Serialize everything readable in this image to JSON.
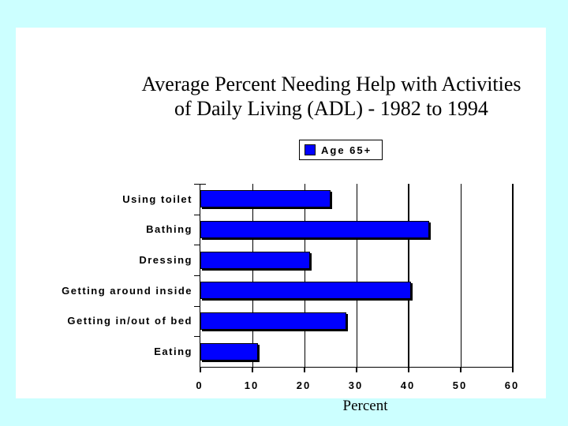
{
  "slide": {
    "background_color": "#ccffff",
    "panel_color": "#ffffff"
  },
  "title": {
    "line1": "Average Percent Needing Help with Activities",
    "line2": "of Daily Living (ADL) - 1982 to 1994"
  },
  "legend": {
    "label": "Age 65+",
    "swatch_color": "#0000ff"
  },
  "chart_data": {
    "type": "bar",
    "orientation": "horizontal",
    "title": "Average Percent Needing Help with Activities of Daily Living (ADL) - 1982 to 1994",
    "categories": [
      "Using toilet",
      "Bathing",
      "Dressing",
      "Getting around inside",
      "Getting in/out of bed",
      "Eating"
    ],
    "series": [
      {
        "name": "Age 65+",
        "values": [
          25,
          44,
          21,
          40.5,
          28,
          11
        ]
      }
    ],
    "xlabel": "Percent",
    "xlim": [
      0,
      60
    ],
    "xticks": [
      0,
      10,
      20,
      30,
      40,
      50,
      60
    ],
    "emphasized_gridlines": [
      40,
      60
    ],
    "bar_color": "#0000ff",
    "bar_border_color": "#000000",
    "grid": true,
    "legend_position": "top-center"
  }
}
